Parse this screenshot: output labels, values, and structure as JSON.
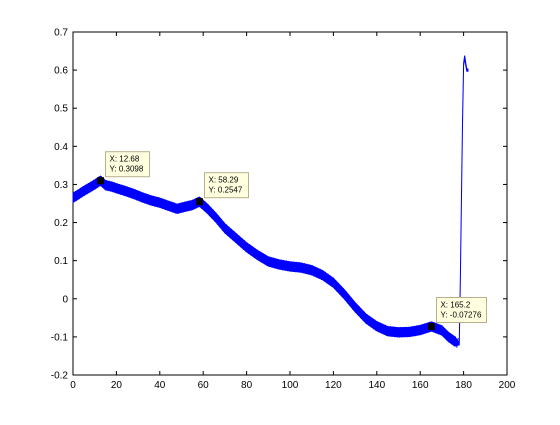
{
  "chart_data": {
    "type": "line",
    "title": "",
    "xlabel": "",
    "ylabel": "",
    "xlim": [
      0,
      200
    ],
    "ylim": [
      -0.2,
      0.7
    ],
    "xticks": [
      "0",
      "20",
      "40",
      "60",
      "80",
      "100",
      "120",
      "140",
      "160",
      "180",
      "200"
    ],
    "yticks": [
      "-0.2",
      "-0.1",
      "0",
      "0.1",
      "0.2",
      "0.3",
      "0.4",
      "0.5",
      "0.6",
      "0.7"
    ],
    "grid": false,
    "legend": "none",
    "colors": {
      "series": "#0000ff",
      "axes": "#000000",
      "datatip_bg": "#ffffe0",
      "datatip_border": "#b8b08a",
      "marker": "#000000"
    },
    "series": [
      {
        "band_halfwidth": 0.012,
        "x": [
          0,
          2,
          5,
          8,
          10,
          12.68,
          15,
          18,
          20,
          24,
          28,
          32,
          36,
          40,
          44,
          48,
          52,
          55,
          58.29,
          62,
          66,
          70,
          75,
          80,
          85,
          90,
          95,
          100,
          105,
          110,
          115,
          120,
          125,
          130,
          135,
          140,
          145,
          150,
          155,
          160,
          165.2,
          170,
          173,
          176,
          178,
          178.5,
          179,
          179.5,
          180,
          180.5,
          181,
          181.5,
          182
        ],
        "y": [
          0.265,
          0.272,
          0.283,
          0.293,
          0.3,
          0.3098,
          0.298,
          0.294,
          0.29,
          0.283,
          0.275,
          0.266,
          0.258,
          0.252,
          0.244,
          0.236,
          0.242,
          0.246,
          0.2547,
          0.236,
          0.212,
          0.185,
          0.16,
          0.135,
          0.115,
          0.098,
          0.09,
          0.085,
          0.082,
          0.075,
          0.062,
          0.042,
          0.012,
          -0.022,
          -0.052,
          -0.072,
          -0.085,
          -0.088,
          -0.087,
          -0.082,
          -0.07276,
          -0.083,
          -0.1,
          -0.112,
          -0.118,
          0.05,
          0.26,
          0.46,
          0.615,
          0.635,
          0.615,
          0.6,
          0.6
        ]
      }
    ],
    "datatips": [
      {
        "x": 12.68,
        "y": 0.3098,
        "label_x": "X: 12.68",
        "label_y": "Y: 0.3098"
      },
      {
        "x": 58.29,
        "y": 0.2547,
        "label_x": "X: 58.29",
        "label_y": "Y: 0.2547"
      },
      {
        "x": 165.2,
        "y": -0.07276,
        "label_x": "X: 165.2",
        "label_y": "Y: -0.07276"
      }
    ]
  }
}
